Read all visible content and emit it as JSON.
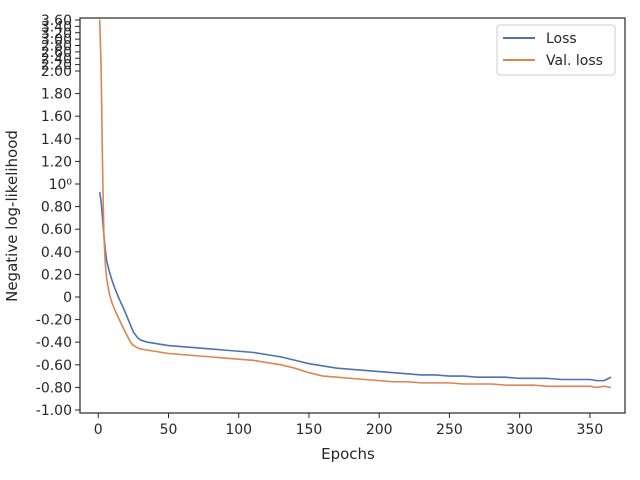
{
  "chart_data": {
    "type": "line",
    "title": "",
    "xlabel": "Epochs",
    "ylabel": "Negative log-likelihood",
    "xlim": [
      -13,
      375
    ],
    "ylim": [
      -1.02,
      3.62
    ],
    "y_scale": "symlog-like (linear below 2.0, compressed above 2.0)",
    "grid": false,
    "legend_position": "top-right",
    "x_ticks": [
      {
        "value": 0,
        "label": "0"
      },
      {
        "value": 50,
        "label": "50"
      },
      {
        "value": 100,
        "label": "100"
      },
      {
        "value": 150,
        "label": "150"
      },
      {
        "value": 200,
        "label": "200"
      },
      {
        "value": 250,
        "label": "250"
      },
      {
        "value": 300,
        "label": "300"
      },
      {
        "value": 350,
        "label": "350"
      }
    ],
    "y_ticks": [
      {
        "value": -1.0,
        "label": "-1.00"
      },
      {
        "value": -0.8,
        "label": "-0.80"
      },
      {
        "value": -0.6,
        "label": "-0.60"
      },
      {
        "value": -0.4,
        "label": "-0.40"
      },
      {
        "value": -0.2,
        "label": "-0.20"
      },
      {
        "value": 0.0,
        "label": "0"
      },
      {
        "value": 0.2,
        "label": "0.20"
      },
      {
        "value": 0.4,
        "label": "0.40"
      },
      {
        "value": 0.6,
        "label": "0.60"
      },
      {
        "value": 0.8,
        "label": "0.80"
      },
      {
        "value": 1.0,
        "label": "10⁰"
      },
      {
        "value": 1.2,
        "label": "1.20"
      },
      {
        "value": 1.4,
        "label": "1.40"
      },
      {
        "value": 1.6,
        "label": "1.60"
      },
      {
        "value": 1.8,
        "label": "1.80"
      },
      {
        "value": 2.0,
        "label": "2.00"
      },
      {
        "value": 2.2,
        "label": "2.20"
      },
      {
        "value": 2.4,
        "label": "2.40"
      },
      {
        "value": 2.6,
        "label": "2.60"
      },
      {
        "value": 2.8,
        "label": "2.80"
      },
      {
        "value": 3.0,
        "label": "3.00"
      },
      {
        "value": 3.2,
        "label": "3.20"
      },
      {
        "value": 3.4,
        "label": "3.40"
      },
      {
        "value": 3.6,
        "label": "3.60"
      }
    ],
    "series": [
      {
        "name": "Loss",
        "color": "#4c72b0",
        "x": [
          1,
          2,
          3,
          4,
          5,
          6,
          8,
          10,
          12,
          15,
          18,
          20,
          23,
          25,
          28,
          30,
          35,
          40,
          45,
          50,
          60,
          70,
          80,
          90,
          100,
          110,
          120,
          130,
          140,
          150,
          160,
          170,
          180,
          190,
          200,
          210,
          220,
          230,
          240,
          250,
          260,
          270,
          280,
          290,
          300,
          310,
          320,
          330,
          340,
          350,
          355,
          360,
          365
        ],
        "y": [
          0.93,
          0.85,
          0.7,
          0.55,
          0.42,
          0.32,
          0.22,
          0.14,
          0.07,
          -0.02,
          -0.1,
          -0.16,
          -0.25,
          -0.31,
          -0.36,
          -0.38,
          -0.4,
          -0.41,
          -0.42,
          -0.43,
          -0.44,
          -0.45,
          -0.46,
          -0.47,
          -0.48,
          -0.49,
          -0.51,
          -0.53,
          -0.56,
          -0.59,
          -0.61,
          -0.63,
          -0.64,
          -0.65,
          -0.66,
          -0.67,
          -0.68,
          -0.69,
          -0.69,
          -0.7,
          -0.7,
          -0.71,
          -0.71,
          -0.71,
          -0.72,
          -0.72,
          -0.72,
          -0.73,
          -0.73,
          -0.73,
          -0.74,
          -0.74,
          -0.71
        ]
      },
      {
        "name": "Val. loss",
        "color": "#dd8452",
        "x": [
          1,
          2,
          3,
          4,
          5,
          6,
          8,
          10,
          12,
          15,
          18,
          20,
          23,
          25,
          28,
          30,
          35,
          40,
          45,
          50,
          60,
          70,
          80,
          90,
          100,
          110,
          120,
          130,
          140,
          150,
          160,
          170,
          180,
          190,
          200,
          210,
          220,
          230,
          240,
          250,
          260,
          270,
          280,
          290,
          300,
          310,
          320,
          330,
          340,
          350,
          355,
          360,
          365
        ],
        "y": [
          3.62,
          2.2,
          1.2,
          0.55,
          0.3,
          0.16,
          0.02,
          -0.06,
          -0.12,
          -0.2,
          -0.28,
          -0.33,
          -0.4,
          -0.43,
          -0.45,
          -0.46,
          -0.47,
          -0.48,
          -0.49,
          -0.5,
          -0.51,
          -0.52,
          -0.53,
          -0.54,
          -0.55,
          -0.56,
          -0.58,
          -0.6,
          -0.63,
          -0.67,
          -0.7,
          -0.71,
          -0.72,
          -0.73,
          -0.74,
          -0.75,
          -0.75,
          -0.76,
          -0.76,
          -0.76,
          -0.77,
          -0.77,
          -0.77,
          -0.78,
          -0.78,
          -0.78,
          -0.79,
          -0.79,
          -0.79,
          -0.79,
          -0.8,
          -0.79,
          -0.8
        ]
      }
    ]
  }
}
